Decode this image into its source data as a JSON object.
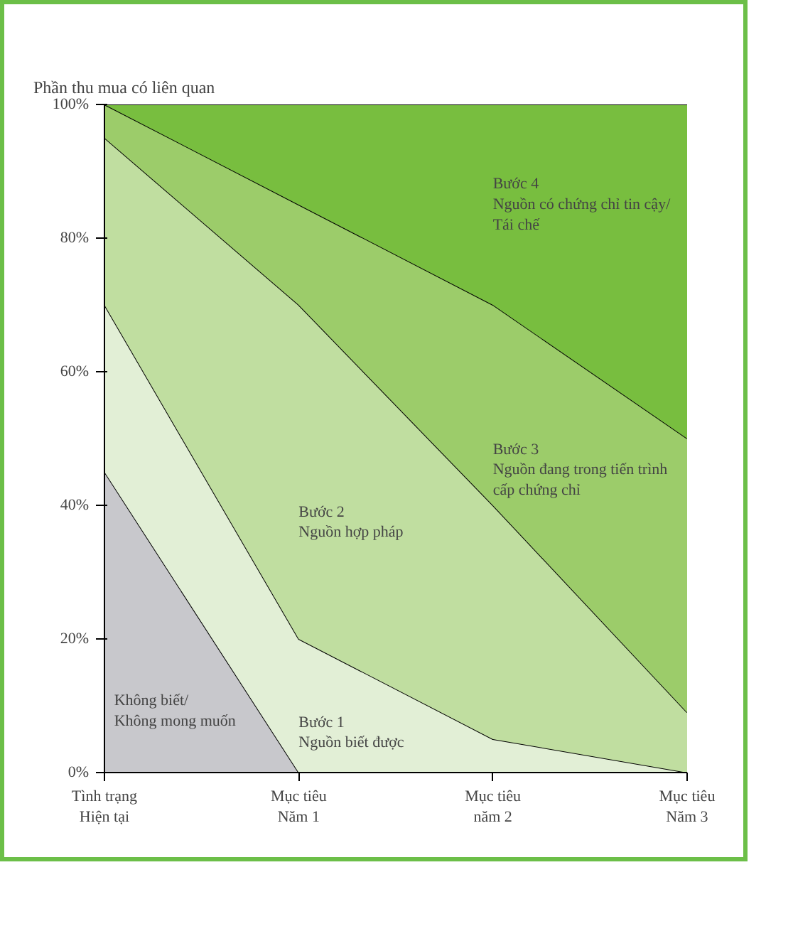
{
  "chart_data": {
    "type": "area",
    "stacked": true,
    "ylabel": "Phần thu mua có liên quan",
    "categories": [
      "Tình trạng\nHiện tại",
      "Mục tiêu\nNăm 1",
      "Mục tiêu\nnăm 2",
      "Mục tiêu\nNăm 3"
    ],
    "ylim": [
      0,
      100
    ],
    "yticks": [
      {
        "value": 0,
        "label": "0%"
      },
      {
        "value": 20,
        "label": "20%"
      },
      {
        "value": 40,
        "label": "40%"
      },
      {
        "value": 60,
        "label": "60%"
      },
      {
        "value": 80,
        "label": "80%"
      },
      {
        "value": 100,
        "label": "100%"
      }
    ],
    "series": [
      {
        "name": "Không biết/\nKhông mong muốn",
        "color": "#c8c8cc",
        "values": [
          45,
          0,
          0,
          0
        ]
      },
      {
        "name": "Bước 1\nNguồn biết được",
        "color": "#e2efd6",
        "values": [
          25,
          20,
          5,
          0
        ]
      },
      {
        "name": "Bước 2\nNguồn hợp pháp",
        "color": "#c0dea0",
        "values": [
          25,
          50,
          35,
          9
        ]
      },
      {
        "name": "Bước 3\nNguồn đang trong tiến trình\ncấp chứng chỉ",
        "color": "#9ccc6a",
        "values": [
          5,
          15,
          30,
          41
        ]
      },
      {
        "name": "Bước 4\nNguồn có chứng chỉ tin cậy/\nTái chế",
        "color": "#78be3f",
        "values": [
          0,
          15,
          30,
          50
        ]
      }
    ]
  }
}
